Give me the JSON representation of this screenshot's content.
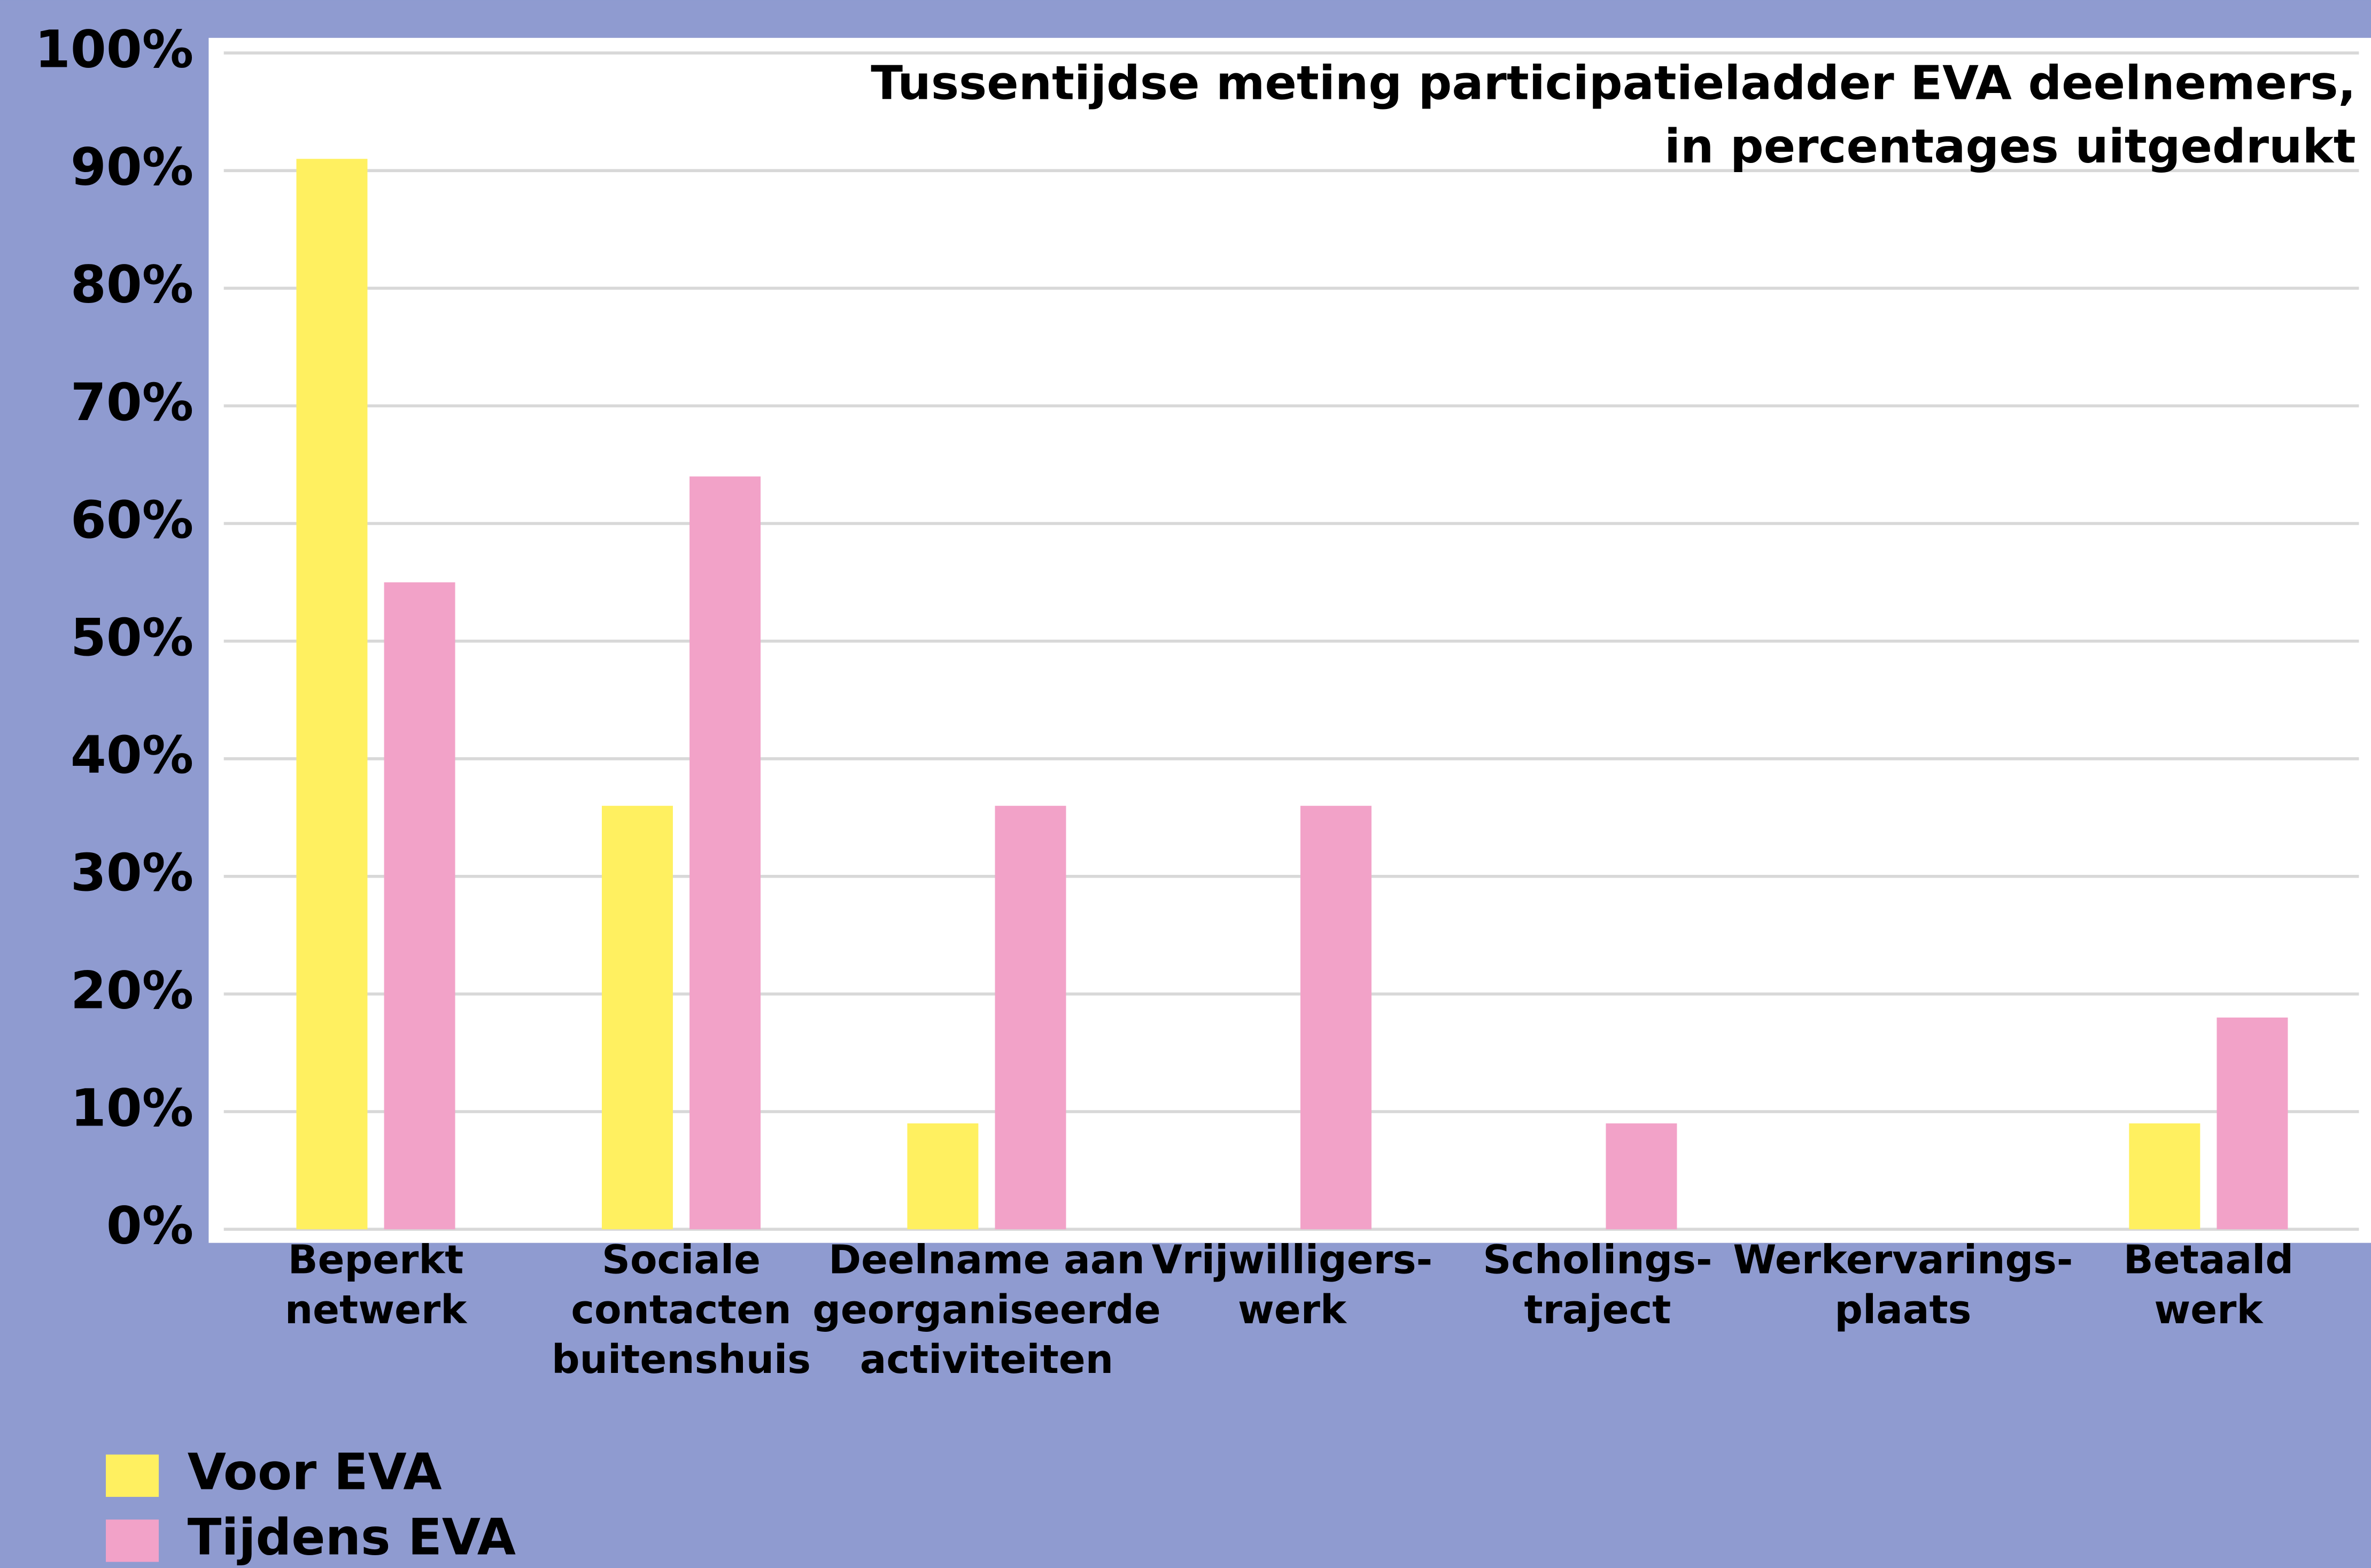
{
  "chart_data": {
    "type": "bar",
    "title": [
      "Tussentijdse meting participatieladder EVA deelnemers,",
      "in percentages uitgedrukt"
    ],
    "categories": [
      [
        "Beperkt",
        "netwerk"
      ],
      [
        "Sociale",
        "contacten",
        "buitenshuis"
      ],
      [
        "Deelname aan",
        "georganiseerde",
        "activiteiten"
      ],
      [
        "Vrijwilligers-",
        "werk"
      ],
      [
        "Scholings-",
        "traject"
      ],
      [
        "Werkervarings-",
        "plaats"
      ],
      [
        "Betaald",
        "werk"
      ]
    ],
    "series": [
      {
        "name": "Voor EVA",
        "color": "#fff060",
        "values": [
          91,
          36,
          9,
          0,
          0,
          0,
          9
        ]
      },
      {
        "name": "Tijdens EVA",
        "color": "#f2a2c8",
        "values": [
          55,
          64,
          36,
          36,
          9,
          0,
          18
        ]
      }
    ],
    "ylim": [
      0,
      100
    ],
    "yticks": [
      {
        "value": 0,
        "label": "0%"
      },
      {
        "value": 10,
        "label": "10%"
      },
      {
        "value": 20,
        "label": "20%"
      },
      {
        "value": 30,
        "label": "30%"
      },
      {
        "value": 40,
        "label": "40%"
      },
      {
        "value": 50,
        "label": "50%"
      },
      {
        "value": 60,
        "label": "60%"
      },
      {
        "value": 70,
        "label": "70%"
      },
      {
        "value": 80,
        "label": "80%"
      },
      {
        "value": 90,
        "label": "90%"
      },
      {
        "value": 100,
        "label": "100%"
      }
    ],
    "grid": true,
    "legend": "bottom-left"
  }
}
